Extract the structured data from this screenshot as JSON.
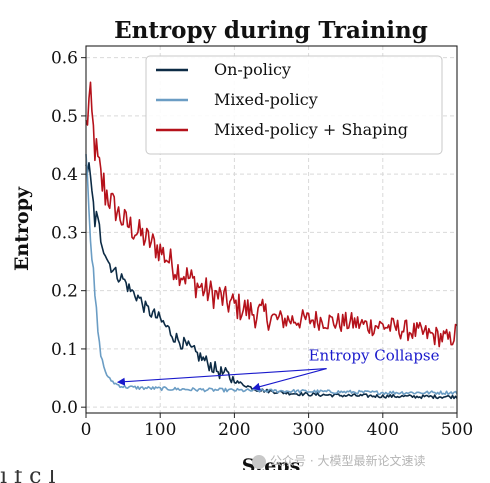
{
  "chart_data": {
    "type": "line",
    "title": "Entropy during Training",
    "xlabel": "Steps",
    "ylabel": "Entropy",
    "xlim": [
      0,
      500
    ],
    "ylim": [
      -0.01,
      0.62
    ],
    "xticks": [
      0,
      100,
      200,
      300,
      400,
      500
    ],
    "yticks": [
      0.0,
      0.1,
      0.2,
      0.3,
      0.4,
      0.5,
      0.6
    ],
    "xtick_labels": [
      "0",
      "100",
      "200",
      "300",
      "400",
      "500"
    ],
    "ytick_labels": [
      "0.0",
      "0.1",
      "0.2",
      "0.3",
      "0.4",
      "0.5",
      "0.6"
    ],
    "grid": true,
    "legend_position": "top-right",
    "series": [
      {
        "name": "On-policy",
        "color": "#0d2b45",
        "x": [
          0,
          5,
          10,
          15,
          20,
          30,
          40,
          50,
          60,
          70,
          80,
          90,
          100,
          110,
          120,
          130,
          140,
          150,
          160,
          170,
          180,
          190,
          200,
          210,
          220,
          230,
          250,
          275,
          300,
          350,
          400,
          450,
          500
        ],
        "y": [
          0.43,
          0.39,
          0.34,
          0.31,
          0.29,
          0.25,
          0.23,
          0.22,
          0.2,
          0.19,
          0.17,
          0.16,
          0.15,
          0.135,
          0.12,
          0.11,
          0.1,
          0.09,
          0.08,
          0.07,
          0.06,
          0.055,
          0.045,
          0.04,
          0.035,
          0.03,
          0.027,
          0.024,
          0.022,
          0.02,
          0.019,
          0.018,
          0.018
        ]
      },
      {
        "name": "Mixed-policy",
        "color": "#6b9dc4",
        "x": [
          0,
          3,
          6,
          10,
          15,
          20,
          25,
          30,
          40,
          50,
          75,
          100,
          150,
          200,
          250,
          300,
          350,
          400,
          450,
          500
        ],
        "y": [
          0.44,
          0.38,
          0.3,
          0.22,
          0.14,
          0.09,
          0.065,
          0.05,
          0.04,
          0.035,
          0.033,
          0.032,
          0.03,
          0.029,
          0.028,
          0.027,
          0.026,
          0.025,
          0.025,
          0.025
        ]
      },
      {
        "name": "Mixed-policy + Shaping",
        "color": "#b5121b",
        "x": [
          0,
          5,
          10,
          15,
          20,
          30,
          40,
          50,
          60,
          70,
          80,
          90,
          100,
          110,
          120,
          130,
          140,
          150,
          160,
          170,
          180,
          190,
          200,
          210,
          220,
          230,
          240,
          250,
          260,
          270,
          280,
          300,
          320,
          340,
          360,
          380,
          400,
          420,
          440,
          460,
          480,
          490,
          500
        ],
        "y": [
          0.48,
          0.53,
          0.47,
          0.42,
          0.39,
          0.36,
          0.34,
          0.32,
          0.31,
          0.3,
          0.29,
          0.28,
          0.27,
          0.255,
          0.24,
          0.23,
          0.22,
          0.21,
          0.2,
          0.195,
          0.19,
          0.18,
          0.175,
          0.17,
          0.165,
          0.16,
          0.16,
          0.155,
          0.15,
          0.15,
          0.15,
          0.15,
          0.15,
          0.145,
          0.145,
          0.14,
          0.14,
          0.135,
          0.13,
          0.125,
          0.12,
          0.115,
          0.13
        ]
      }
    ],
    "annotations": [
      {
        "text": "Entropy Collapse",
        "color": "#1a1acc",
        "text_at": [
          300,
          0.08
        ],
        "arrows_to": [
          [
            43,
            0.043
          ],
          [
            225,
            0.032
          ]
        ]
      }
    ]
  },
  "watermark": {
    "text": "公众号 · 大模型最新论文速读",
    "icon": "wechat-icon"
  },
  "caption_fragment": "i      f   c         l"
}
